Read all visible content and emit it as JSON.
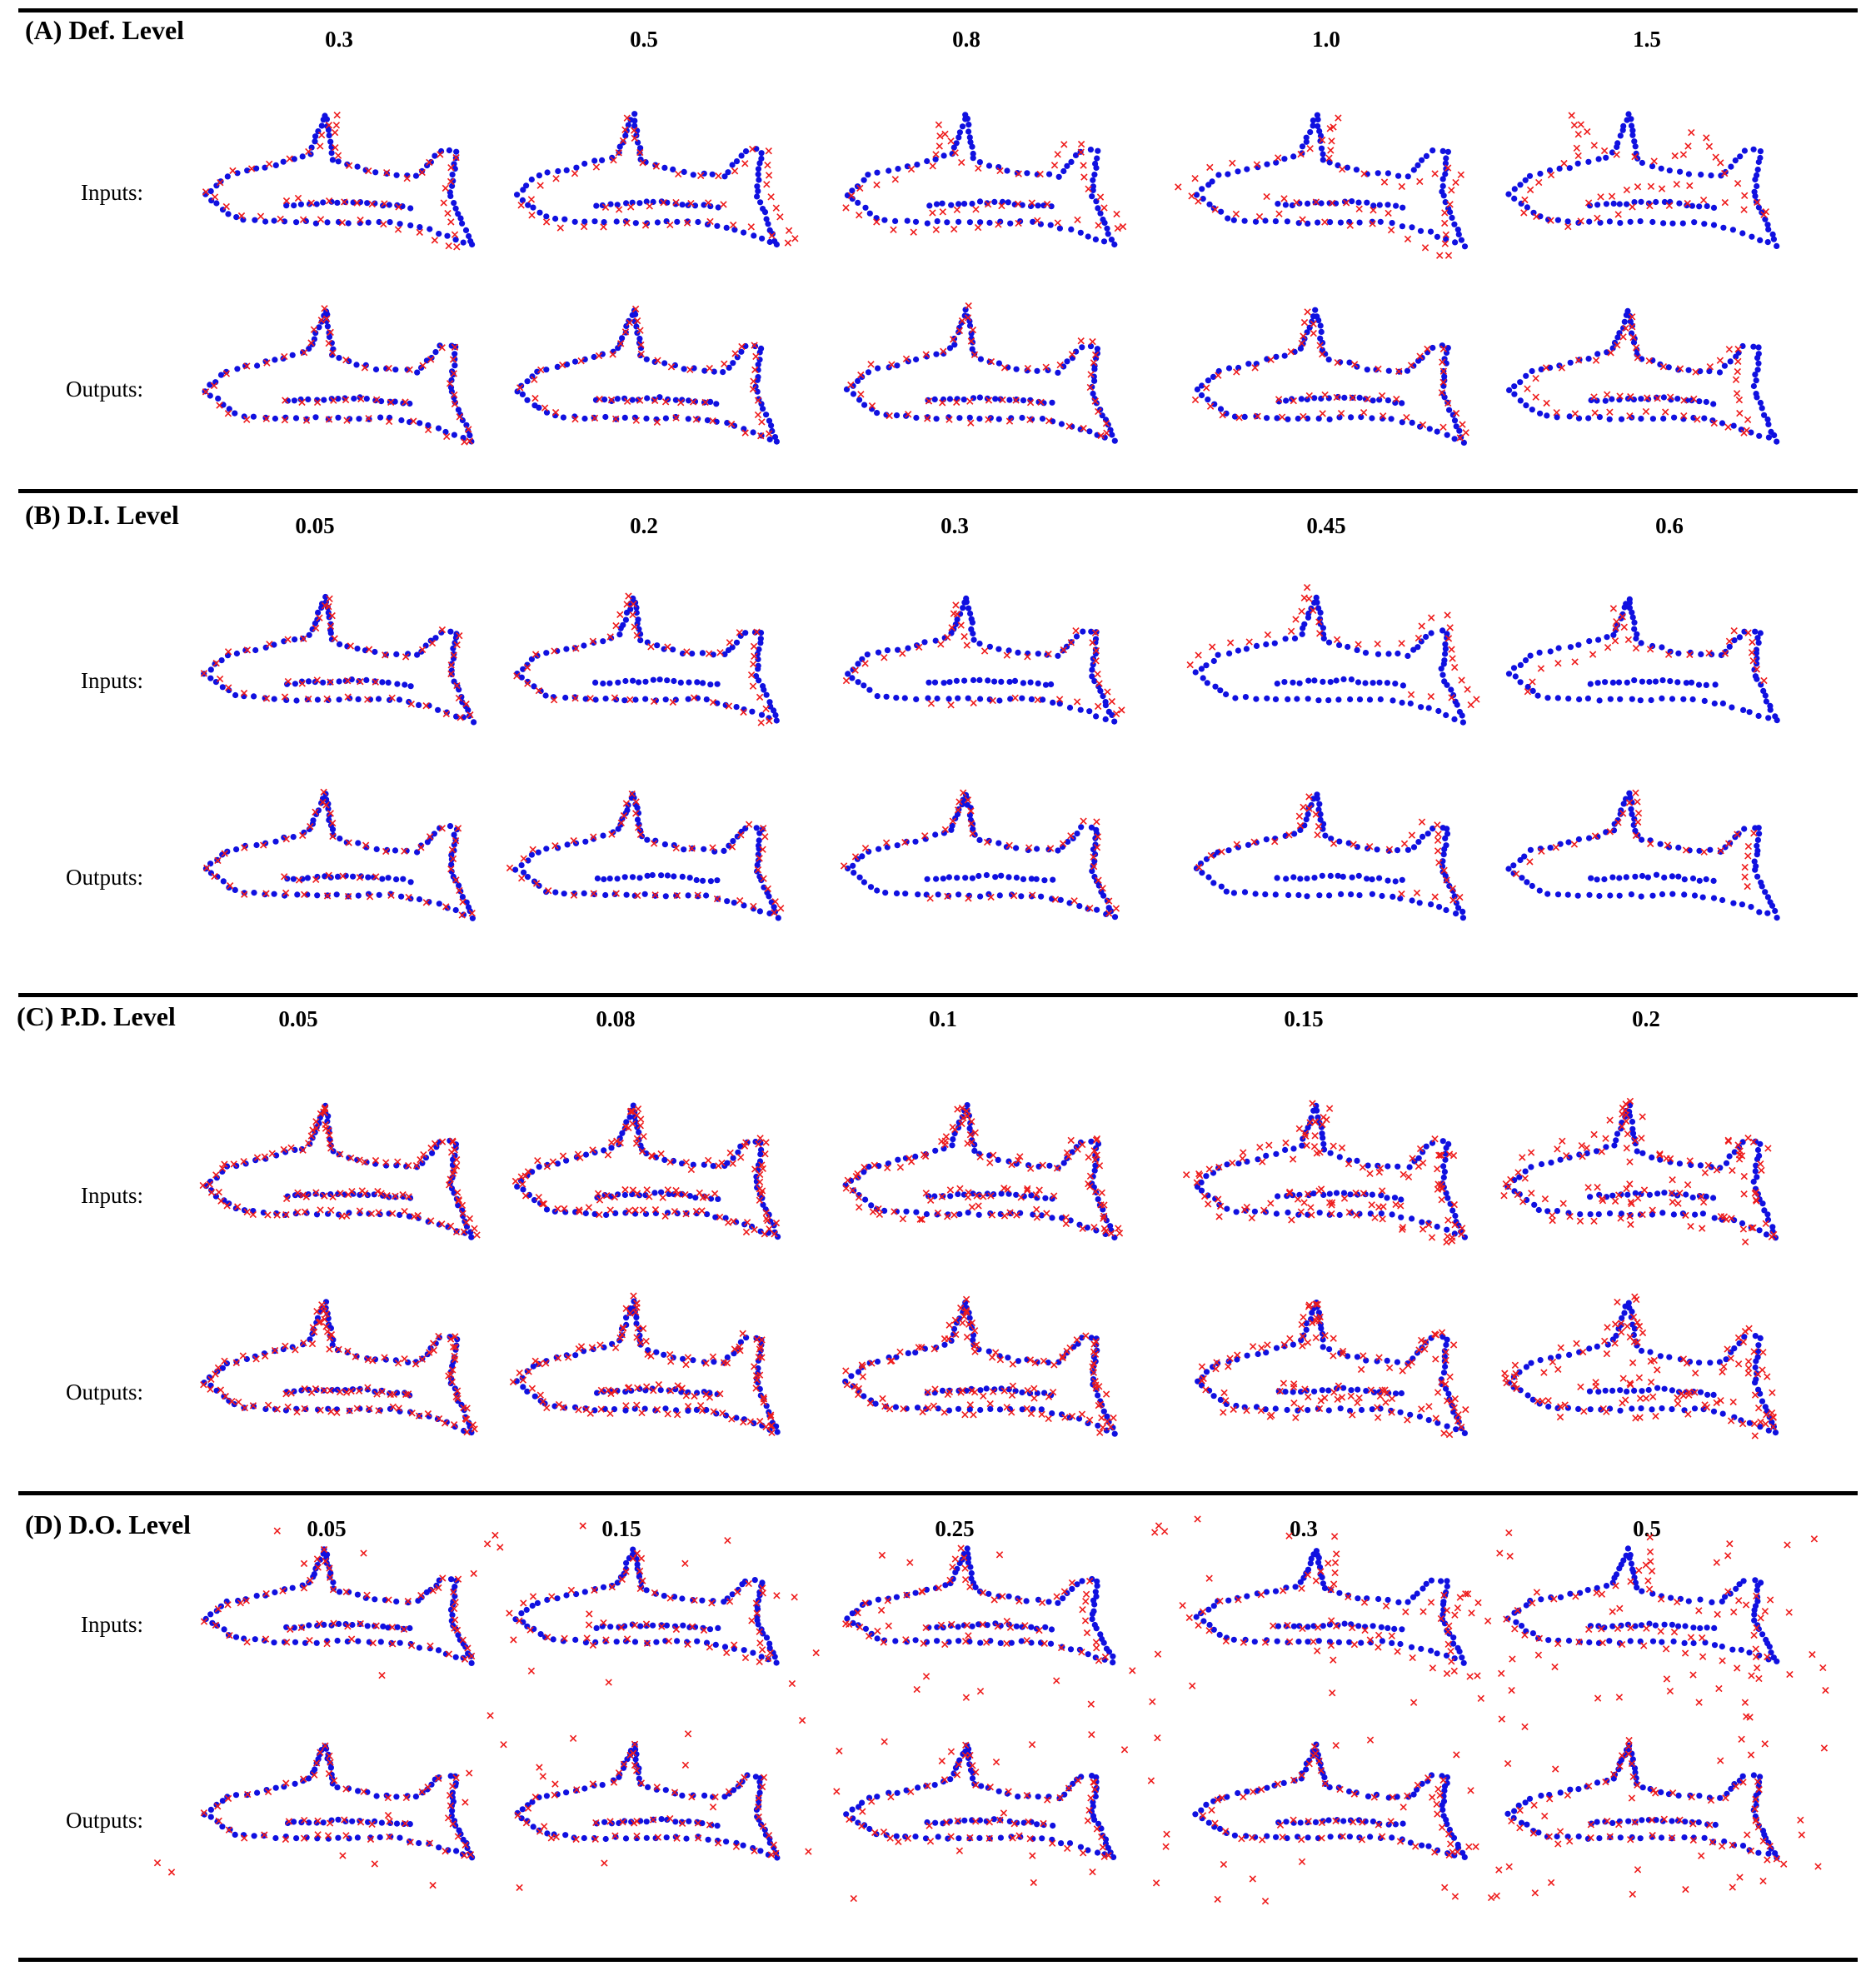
{
  "panels": [
    {
      "label": "(A)  Def. Level",
      "levels": [
        "0.3",
        "0.5",
        "0.8",
        "1.0",
        "1.5"
      ],
      "row_labels": [
        "Inputs:",
        "Outputs:"
      ]
    },
    {
      "label": "(B)  D.I. Level",
      "levels": [
        "0.05",
        "0.2",
        "0.3",
        "0.45",
        "0.6"
      ],
      "row_labels": [
        "Inputs:",
        "Outputs:"
      ]
    },
    {
      "label": "(C)  P.D. Level",
      "levels": [
        "0.05",
        "0.08",
        "0.1",
        "0.15",
        "0.2"
      ],
      "row_labels": [
        "Inputs:",
        "Outputs:"
      ]
    },
    {
      "label": "(D)  D.O. Level",
      "levels": [
        "0.05",
        "0.15",
        "0.25",
        "0.3",
        "0.5"
      ],
      "row_labels": [
        "Inputs:",
        "Outputs:"
      ]
    }
  ],
  "colors": {
    "source_points": "#1010e0",
    "target_points": "#ee1c1c",
    "rule": "#000000"
  },
  "marker_names": {
    "source_points": "blue dot",
    "target_points": "red cross"
  }
}
